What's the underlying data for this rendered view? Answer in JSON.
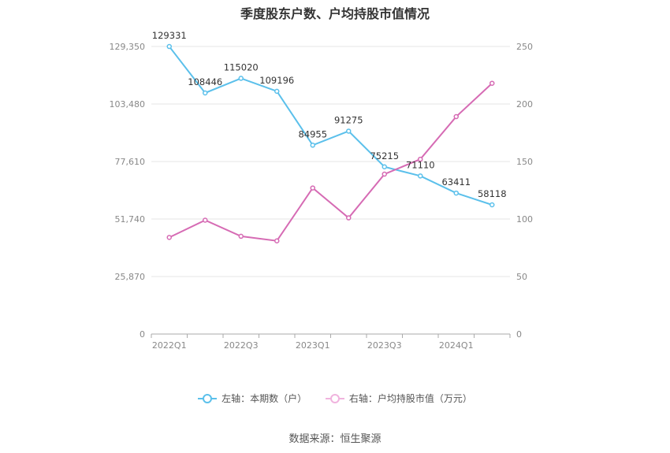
{
  "chart_data": {
    "type": "line",
    "title": "季度股东户数、户均持股市值情况",
    "x": [
      "2022Q1",
      "2022Q2",
      "2022Q3",
      "2022Q4",
      "2023Q1",
      "2023Q2",
      "2023Q3",
      "2023Q4",
      "2024Q1",
      "2024Q2"
    ],
    "x_tick_labels": [
      "2022Q1",
      "2022Q3",
      "2023Q1",
      "2023Q3",
      "2024Q1"
    ],
    "left_axis": {
      "ylim": [
        0,
        129350
      ],
      "ticks": [
        "0",
        "25,870",
        "51,740",
        "77,610",
        "103,480",
        "129,350"
      ]
    },
    "right_axis": {
      "ylim": [
        0,
        250
      ],
      "ticks": [
        "0",
        "50",
        "100",
        "150",
        "200",
        "250"
      ]
    },
    "series": [
      {
        "name": "左轴：本期数（户）",
        "axis": "left",
        "color": "#5bc0eb",
        "values": [
          129331,
          108446,
          115020,
          109196,
          84955,
          91275,
          75215,
          71110,
          63411,
          58118
        ],
        "labels": [
          "129331",
          "108446",
          "115020",
          "109196",
          "84955",
          "91275",
          "75215",
          "71110",
          "63411",
          "58118"
        ]
      },
      {
        "name": "右轴：户均持股市值（万元）",
        "axis": "right",
        "color": "#d66bb4",
        "values": [
          84,
          99,
          85,
          81,
          127,
          101,
          139,
          152,
          189,
          218
        ]
      }
    ],
    "grid": true,
    "legend_position": "bottom-center"
  },
  "legend": {
    "left_label": "左轴：本期数（户）",
    "right_label": "右轴：户均持股市值（万元）"
  },
  "source": "数据来源：恒生聚源"
}
